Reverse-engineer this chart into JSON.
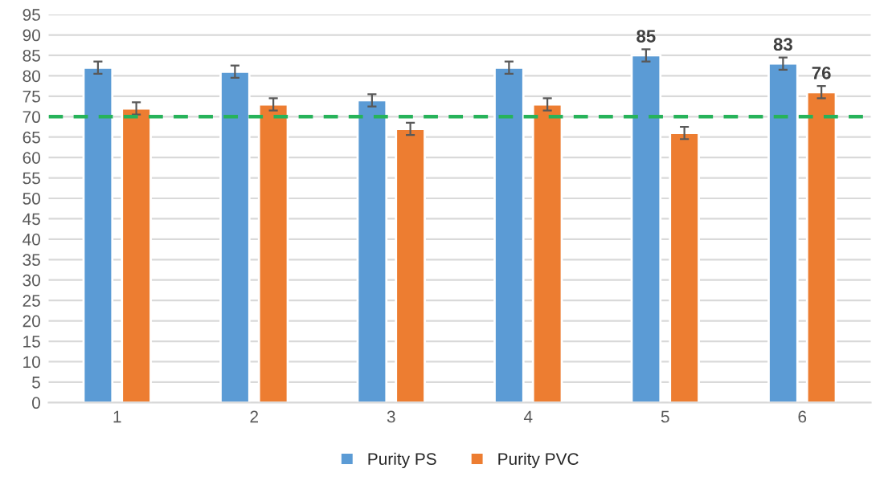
{
  "chart_data": {
    "type": "bar",
    "categories": [
      "1",
      "2",
      "3",
      "4",
      "5",
      "6"
    ],
    "series": [
      {
        "name": "Purity PS",
        "color": "#5b9bd5",
        "values": [
          82,
          81,
          74,
          82,
          85,
          83
        ],
        "errors": [
          1.5,
          1.5,
          1.5,
          1.5,
          1.5,
          1.5
        ],
        "value_labels": [
          null,
          null,
          null,
          null,
          "85",
          "83"
        ]
      },
      {
        "name": "Purity PVC",
        "color": "#ed7d31",
        "values": [
          72,
          73,
          67,
          73,
          66,
          76
        ],
        "errors": [
          1.5,
          1.5,
          1.5,
          1.5,
          1.5,
          1.5
        ],
        "value_labels": [
          null,
          null,
          null,
          null,
          null,
          "76"
        ]
      }
    ],
    "ylim": [
      0,
      95
    ],
    "yticks": [
      0,
      5,
      10,
      15,
      20,
      25,
      30,
      35,
      40,
      45,
      50,
      55,
      60,
      65,
      70,
      75,
      80,
      85,
      90,
      95
    ],
    "ref_lines": [
      {
        "axis": "y",
        "value": 70,
        "label": null,
        "color": "#27b35a",
        "line_style": "dashed"
      }
    ],
    "grid": "y",
    "legend": "bottom"
  }
}
